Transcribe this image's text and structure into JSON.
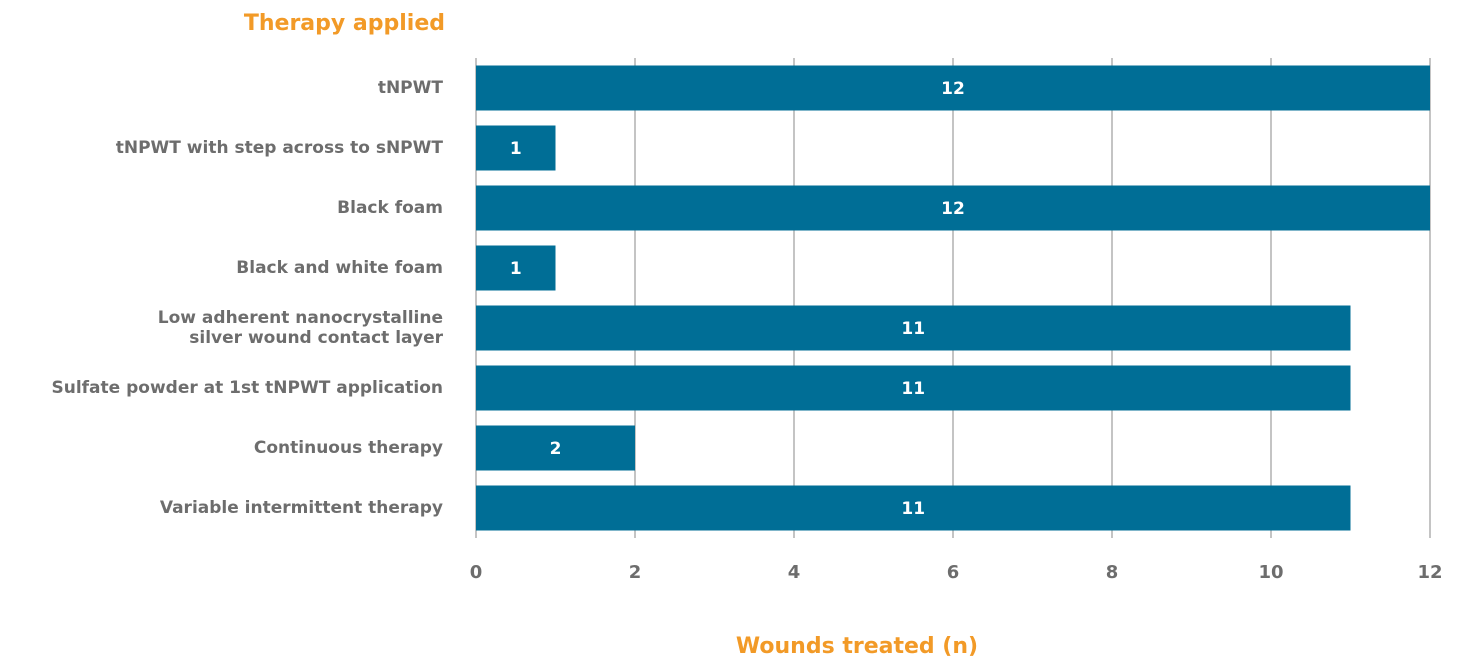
{
  "chart_data": {
    "type": "bar",
    "orientation": "horizontal",
    "y_axis_title": "Therapy applied",
    "x_axis_title": "Wounds treated (n)",
    "categories": [
      "tNPWT",
      "tNPWT with step across to sNPWT",
      "Black foam",
      "Black and white foam",
      "Low adherent nanocrystalline\nsilver wound contact layer",
      "Sulfate powder at 1st tNPWT application",
      "Continuous therapy",
      "Variable intermittent therapy"
    ],
    "values": [
      12,
      1,
      12,
      1,
      11,
      11,
      2,
      11
    ],
    "color": "#006e96",
    "title_color": "#f29a27",
    "xlim": [
      0,
      12
    ],
    "xticks": [
      0,
      2,
      4,
      6,
      8,
      10,
      12
    ],
    "grid": true
  }
}
